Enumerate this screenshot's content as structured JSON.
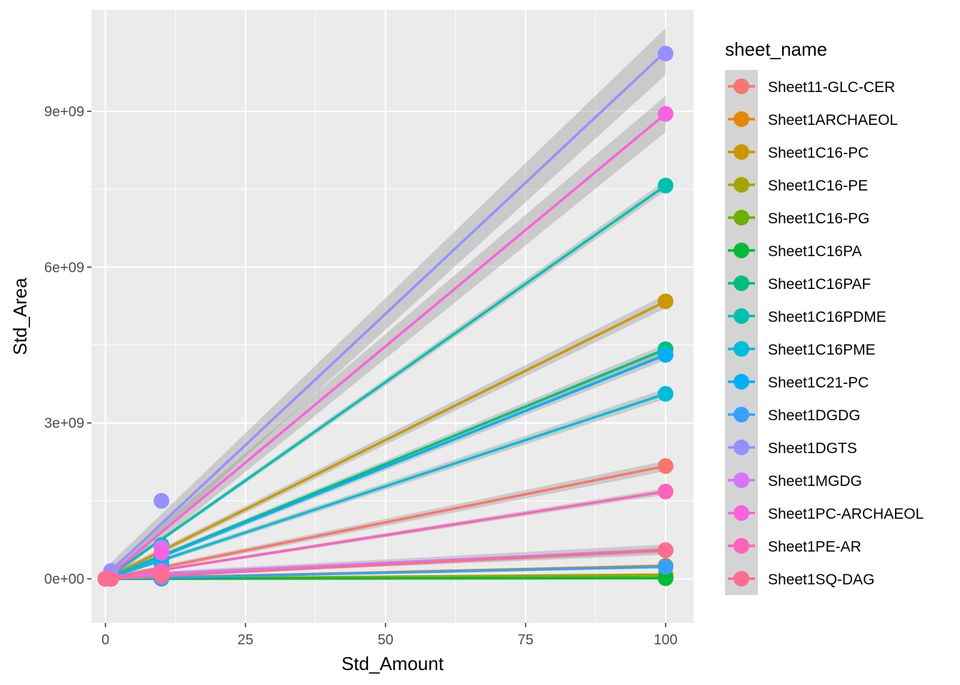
{
  "chart_data": {
    "type": "scatter",
    "title": "",
    "xlabel": "Std_Amount",
    "ylabel": "Std_Area",
    "xlim": [
      -2.5,
      105
    ],
    "ylim": [
      -850000000,
      10950000000
    ],
    "x_ticks": [
      0,
      25,
      50,
      75,
      100
    ],
    "x_tick_labels": [
      "0",
      "25",
      "50",
      "75",
      "100"
    ],
    "y_ticks": [
      0,
      3000000000,
      6000000000,
      9000000000
    ],
    "y_tick_labels": [
      "0e+00",
      "3e+09",
      "6e+09",
      "9e+09"
    ],
    "grid": true,
    "panel_background": "#ebebeb",
    "smooth": "linear fit with grey confidence band per series",
    "legend": {
      "title": "sheet_name",
      "position": "right"
    },
    "series": [
      {
        "name": "Sheet11-GLC-CER",
        "color": "#F8766D",
        "points": [
          [
            0,
            0
          ],
          [
            1,
            0
          ],
          [
            10,
            150000000
          ],
          [
            100,
            2170000000
          ]
        ],
        "fit": [
          0,
          21700000
        ],
        "band": 100000000.0
      },
      {
        "name": "Sheet1ARCHAEOL",
        "color": "#E58700",
        "points": [
          [
            0,
            0
          ],
          [
            1,
            0
          ],
          [
            10,
            20000000
          ],
          [
            100,
            250000000
          ]
        ],
        "fit": [
          0,
          2500000
        ],
        "band": 30000000.0
      },
      {
        "name": "Sheet1C16-PC",
        "color": "#C99800",
        "points": [
          [
            0,
            0
          ],
          [
            1,
            0
          ],
          [
            10,
            500000000
          ],
          [
            100,
            5340000000
          ]
        ],
        "fit": [
          0,
          53400000
        ],
        "band": 130000000.0
      },
      {
        "name": "Sheet1C16-PE",
        "color": "#A3A500",
        "points": [
          [
            0,
            0
          ],
          [
            1,
            0
          ],
          [
            10,
            10000000
          ],
          [
            100,
            80000000
          ]
        ],
        "fit": [
          0,
          800000
        ],
        "band": 20000000.0
      },
      {
        "name": "Sheet1C16-PG",
        "color": "#6BB100",
        "points": [
          [
            0,
            0
          ],
          [
            1,
            0
          ],
          [
            10,
            5000000
          ],
          [
            100,
            30000000
          ]
        ],
        "fit": [
          0,
          300000
        ],
        "band": 15000000.0
      },
      {
        "name": "Sheet1C16PA",
        "color": "#00BA38",
        "points": [
          [
            0,
            0
          ],
          [
            1,
            0
          ],
          [
            10,
            2000000
          ],
          [
            100,
            10000000
          ]
        ],
        "fit": [
          0,
          100000
        ],
        "band": 10000000.0
      },
      {
        "name": "Sheet1C16PAF",
        "color": "#00BF7D",
        "points": [
          [
            0,
            0
          ],
          [
            1,
            0
          ],
          [
            10,
            300000000
          ],
          [
            100,
            4420000000
          ]
        ],
        "fit": [
          0,
          44200000
        ],
        "band": 100000000.0
      },
      {
        "name": "Sheet1C16PDME",
        "color": "#00C0AF",
        "points": [
          [
            0,
            0
          ],
          [
            1,
            0
          ],
          [
            10,
            650000000
          ],
          [
            100,
            7570000000
          ]
        ],
        "fit": [
          0,
          75700000
        ],
        "band": 100000000.0
      },
      {
        "name": "Sheet1C16PME",
        "color": "#00BCD8",
        "points": [
          [
            0,
            0
          ],
          [
            1,
            0
          ],
          [
            10,
            280000000
          ],
          [
            100,
            3560000000
          ]
        ],
        "fit": [
          0,
          35600000
        ],
        "band": 100000000.0
      },
      {
        "name": "Sheet1C21-PC",
        "color": "#00B0F6",
        "points": [
          [
            0,
            0
          ],
          [
            1,
            0
          ],
          [
            10,
            400000000
          ],
          [
            100,
            4310000000
          ]
        ],
        "fit": [
          0,
          43100000
        ],
        "band": 100000000.0
      },
      {
        "name": "Sheet1DGDG",
        "color": "#35A2FF",
        "points": [
          [
            0,
            0
          ],
          [
            1,
            0
          ],
          [
            10,
            0
          ],
          [
            100,
            230000000
          ]
        ],
        "fit": [
          0,
          2300000
        ],
        "band": 30000000.0
      },
      {
        "name": "Sheet1DGTS",
        "color": "#9590FF",
        "points": [
          [
            0,
            0
          ],
          [
            1,
            150000000
          ],
          [
            10,
            1500000000
          ],
          [
            100,
            10110000000
          ]
        ],
        "fit": [
          50000000,
          101000000
        ],
        "band": 450000000.0
      },
      {
        "name": "Sheet1MGDG",
        "color": "#D575FE",
        "points": [
          [
            0,
            0
          ],
          [
            1,
            0
          ],
          [
            10,
            600000000
          ],
          [
            100,
            550000000
          ]
        ],
        "fit": [
          50000000,
          5100000
        ],
        "band": 100000000.0
      },
      {
        "name": "Sheet1PC-ARCHAEOL",
        "color": "#F962DD",
        "points": [
          [
            0,
            0
          ],
          [
            1,
            0
          ],
          [
            10,
            500000000
          ],
          [
            100,
            8950000000
          ]
        ],
        "fit": [
          0,
          89500000
        ],
        "band": 350000000.0
      },
      {
        "name": "Sheet1PE-AR",
        "color": "#FF62BC",
        "points": [
          [
            0,
            0
          ],
          [
            1,
            0
          ],
          [
            10,
            150000000
          ],
          [
            100,
            1680000000
          ]
        ],
        "fit": [
          0,
          16800000
        ],
        "band": 60000000.0
      },
      {
        "name": "Sheet1SQ-DAG",
        "color": "#FF6C91",
        "points": [
          [
            0,
            0
          ],
          [
            1,
            0
          ],
          [
            10,
            50000000
          ],
          [
            100,
            550000000
          ]
        ],
        "fit": [
          0,
          5500000
        ],
        "band": 50000000.0
      }
    ]
  }
}
